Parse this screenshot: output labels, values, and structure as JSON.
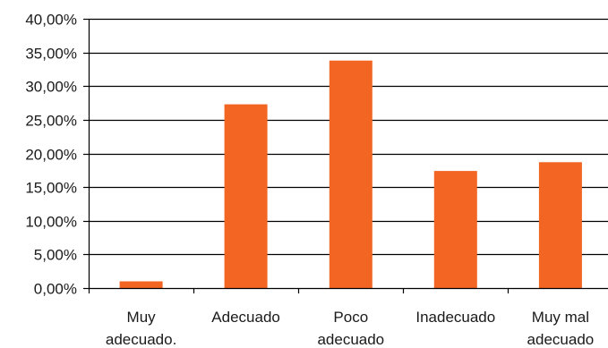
{
  "chart_data": {
    "type": "bar",
    "categories": [
      [
        "Muy",
        "adecuado."
      ],
      [
        "Adecuado"
      ],
      [
        "Poco",
        "adecuado"
      ],
      [
        "Inadecuado"
      ],
      [
        "Muy mal",
        "adecuado"
      ]
    ],
    "values": [
      1.0,
      27.3,
      33.8,
      17.4,
      18.7
    ],
    "ylim": [
      0,
      40
    ],
    "yticks": [
      0,
      5,
      10,
      15,
      20,
      25,
      30,
      35,
      40
    ],
    "ytick_labels": [
      "0,00%",
      "5,00%",
      "10,00%",
      "15,00%",
      "20,00%",
      "25,00%",
      "30,00%",
      "35,00%",
      "40,00%"
    ],
    "grid": true,
    "legend": "none",
    "colors": {
      "bar": "#f26522",
      "grid": "#000000",
      "axis": "#000000"
    }
  }
}
